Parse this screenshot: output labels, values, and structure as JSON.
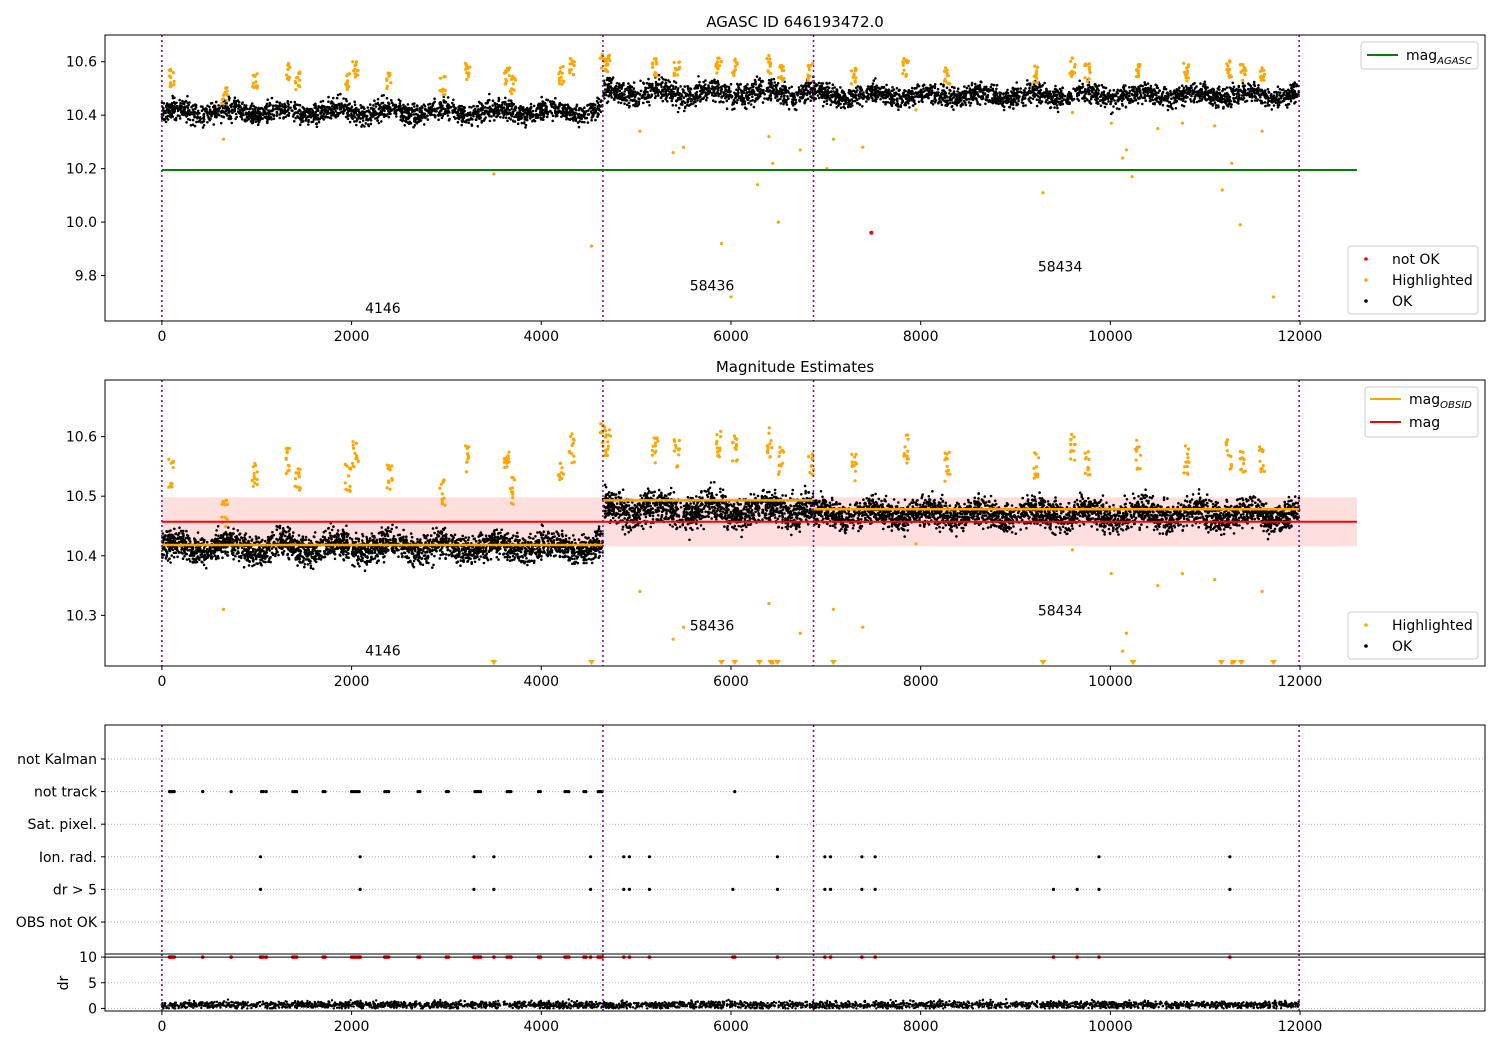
{
  "chart_data": [
    {
      "type": "scatter",
      "title": "AGASC ID 646193472.0",
      "xlim": [
        -600,
        13950
      ],
      "ylim": [
        9.63,
        10.7
      ],
      "xticks": [
        0,
        2000,
        4000,
        6000,
        8000,
        10000,
        12000
      ],
      "yticks": [
        9.8,
        10.0,
        10.2,
        10.4,
        10.6
      ],
      "obsid_boundaries": [
        0,
        4650,
        6870,
        11990
      ],
      "obsid_labels": [
        {
          "text": "4146",
          "x": 2330,
          "y": 9.66
        },
        {
          "text": "58436",
          "x": 5800,
          "y": 9.745
        },
        {
          "text": "58434",
          "x": 9470,
          "y": 9.815
        }
      ],
      "reference_lines": [
        {
          "name": "mag_AGASC",
          "color": "#008000",
          "y": 10.195,
          "x": [
            0,
            12600
          ]
        }
      ],
      "legend": {
        "upper_right": [
          {
            "label": "mag",
            "subscript": "AGASC",
            "color": "#008000",
            "marker": "line"
          }
        ],
        "lower_right": [
          {
            "label": "not OK",
            "color": "#ff0000",
            "marker": "dot"
          },
          {
            "label": "Highlighted",
            "color": "#ffa500",
            "marker": "dot"
          },
          {
            "label": "OK",
            "color": "#000000",
            "marker": "dot"
          }
        ]
      },
      "ok_segments": [
        {
          "x": [
            0,
            4650
          ],
          "mean": 10.413,
          "spread": 0.035
        },
        {
          "x": [
            4650,
            6870
          ],
          "mean": 10.485,
          "spread": 0.04
        },
        {
          "x": [
            6870,
            11990
          ],
          "mean": 10.475,
          "spread": 0.035
        }
      ],
      "highlighted_clusters": [
        [
          100,
          10.54
        ],
        [
          660,
          10.47
        ],
        [
          980,
          10.53
        ],
        [
          1340,
          10.56
        ],
        [
          1430,
          10.53
        ],
        [
          1960,
          10.53
        ],
        [
          2040,
          10.57
        ],
        [
          2400,
          10.53
        ],
        [
          2960,
          10.51
        ],
        [
          3230,
          10.56
        ],
        [
          3640,
          10.55
        ],
        [
          3700,
          10.51
        ],
        [
          4210,
          10.55
        ],
        [
          4320,
          10.58
        ],
        [
          4650,
          10.6
        ],
        [
          4700,
          10.59
        ],
        [
          5200,
          10.58
        ],
        [
          5430,
          10.57
        ],
        [
          5870,
          10.59
        ],
        [
          6040,
          10.58
        ],
        [
          6400,
          10.59
        ],
        [
          6530,
          10.56
        ],
        [
          6840,
          10.56
        ],
        [
          7300,
          10.55
        ],
        [
          7840,
          10.58
        ],
        [
          8280,
          10.55
        ],
        [
          9220,
          10.55
        ],
        [
          9600,
          10.58
        ],
        [
          9760,
          10.56
        ],
        [
          10290,
          10.57
        ],
        [
          10800,
          10.56
        ],
        [
          11250,
          10.57
        ],
        [
          11400,
          10.56
        ],
        [
          11600,
          10.56
        ]
      ],
      "highlighted_outliers": [
        [
          650,
          10.31
        ],
        [
          3500,
          10.18
        ],
        [
          4530,
          9.91
        ],
        [
          5040,
          10.34
        ],
        [
          5390,
          10.26
        ],
        [
          5500,
          10.28
        ],
        [
          5900,
          9.92
        ],
        [
          6000,
          9.72
        ],
        [
          6280,
          10.14
        ],
        [
          6400,
          10.32
        ],
        [
          6440,
          10.22
        ],
        [
          6500,
          10.0
        ],
        [
          6730,
          10.27
        ],
        [
          7080,
          10.31
        ],
        [
          7010,
          10.2
        ],
        [
          7390,
          10.28
        ],
        [
          7950,
          10.42
        ],
        [
          9290,
          10.11
        ],
        [
          9600,
          10.41
        ],
        [
          10010,
          10.37
        ],
        [
          10130,
          10.24
        ],
        [
          10170,
          10.27
        ],
        [
          10230,
          10.17
        ],
        [
          10500,
          10.35
        ],
        [
          10760,
          10.37
        ],
        [
          11100,
          10.36
        ],
        [
          11180,
          10.12
        ],
        [
          11280,
          10.22
        ],
        [
          11370,
          9.99
        ],
        [
          11600,
          10.34
        ],
        [
          11720,
          9.72
        ]
      ],
      "not_ok_points": [
        [
          7480,
          9.96
        ]
      ]
    },
    {
      "type": "scatter",
      "title": "Magnitude Estimates",
      "xlim": [
        -600,
        13950
      ],
      "ylim": [
        10.215,
        10.695
      ],
      "xticks": [
        0,
        2000,
        4000,
        6000,
        8000,
        10000,
        12000
      ],
      "yticks": [
        10.3,
        10.4,
        10.5,
        10.6
      ],
      "obsid_boundaries": [
        0,
        4650,
        6870,
        11990
      ],
      "obsid_labels": [
        {
          "text": "4146",
          "x": 2330,
          "y": 10.233
        },
        {
          "text": "58436",
          "x": 5800,
          "y": 10.275
        },
        {
          "text": "58434",
          "x": 9470,
          "y": 10.3
        }
      ],
      "mean_mag": {
        "name": "mag",
        "color": "#ff0000",
        "y": 10.457,
        "band": [
          10.416,
          10.498
        ],
        "x": [
          0,
          12600
        ]
      },
      "obsid_mags": {
        "name": "mag_OBSID",
        "color": "#ffa500",
        "segments": [
          {
            "x": [
              0,
              4650
            ],
            "y": 10.418
          },
          {
            "x": [
              4650,
              6870
            ],
            "y": 10.493
          },
          {
            "x": [
              6870,
              11990
            ],
            "y": 10.478
          }
        ]
      },
      "legend": {
        "upper_right": [
          {
            "label": "mag",
            "subscript": "OBSID",
            "color": "#ffa500",
            "marker": "line"
          },
          {
            "label": "mag",
            "color": "#ff0000",
            "marker": "line"
          }
        ],
        "lower_right": [
          {
            "label": "Highlighted",
            "color": "#ffa500",
            "marker": "dot"
          },
          {
            "label": "OK",
            "color": "#000000",
            "marker": "dot"
          }
        ]
      },
      "ok_segments": [
        {
          "x": [
            0,
            4650
          ],
          "mean": 10.415,
          "spread": 0.022
        },
        {
          "x": [
            4650,
            6870
          ],
          "mean": 10.478,
          "spread": 0.025
        },
        {
          "x": [
            6870,
            11990
          ],
          "mean": 10.47,
          "spread": 0.022
        }
      ],
      "offscale_markers_x": [
        3500,
        4530,
        5900,
        6040,
        6300,
        6420,
        6490,
        7080,
        9290,
        10240,
        11170,
        11300,
        11380,
        11720
      ]
    },
    {
      "type": "scatter",
      "xlim": [
        -600,
        13950
      ],
      "xticks": [
        0,
        2000,
        4000,
        6000,
        8000,
        10000,
        12000
      ],
      "obsid_boundaries": [
        0,
        4650,
        6870,
        11990
      ],
      "flag_rows": [
        "not Kalman",
        "not track",
        "Sat. pixel.",
        "Ion. rad.",
        "dr > 5",
        "OBS not OK"
      ],
      "flag_events": {
        "not track": [
          80,
          90,
          100,
          110,
          130,
          430,
          730,
          1050,
          1070,
          1100,
          1380,
          1400,
          1420,
          1700,
          1720,
          2000,
          2020,
          2040,
          2060,
          2080,
          2350,
          2370,
          2390,
          2700,
          2720,
          3000,
          3020,
          3300,
          3320,
          3340,
          3360,
          3640,
          3660,
          3680,
          3970,
          3990,
          4250,
          4270,
          4290,
          4450,
          4470,
          4600,
          4620,
          4640,
          6040
        ],
        "Ion. rad.": [
          1040,
          2090,
          3290,
          3500,
          4520,
          4870,
          4930,
          5140,
          6490,
          6990,
          7050,
          7380,
          7520,
          9880,
          11260
        ],
        "dr > 5": [
          1040,
          2090,
          3290,
          3500,
          4520,
          4870,
          4930,
          5140,
          6020,
          6490,
          6990,
          7050,
          7380,
          7520,
          9400,
          9650,
          9880,
          11260
        ]
      },
      "dr_panel": {
        "ylabel": "dr",
        "yticks": [
          0,
          5,
          10
        ],
        "ylim": [
          -0.5,
          10.6
        ],
        "limit_line": 10,
        "typical_dr": 0.7
      }
    }
  ],
  "colors": {
    "ok": "#000000",
    "highlighted": "#ffa500",
    "not_ok": "#ff0000",
    "agasc": "#008000",
    "obsid": "#ffa500",
    "mag": "#ff0000",
    "band": "#ffdede",
    "boundary": "#800080",
    "grid": "#b0b0b0"
  }
}
